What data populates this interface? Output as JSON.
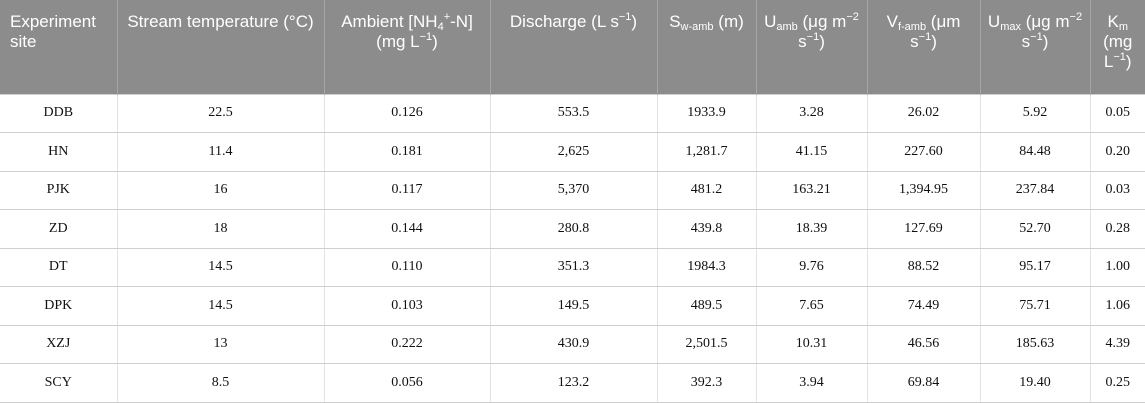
{
  "table": {
    "headers": [
      {
        "parts": [
          {
            "t": "n",
            "v": "Experiment site"
          }
        ]
      },
      {
        "parts": [
          {
            "t": "n",
            "v": "Stream temperature (°C)"
          }
        ]
      },
      {
        "parts": [
          {
            "t": "n",
            "v": "Ambient [NH"
          },
          {
            "t": "sub",
            "v": "4"
          },
          {
            "t": "sup",
            "v": "+"
          },
          {
            "t": "n",
            "v": "-N] (mg L"
          },
          {
            "t": "sup",
            "v": "−1"
          },
          {
            "t": "n",
            "v": ")"
          }
        ]
      },
      {
        "parts": [
          {
            "t": "n",
            "v": "Discharge (L s"
          },
          {
            "t": "sup",
            "v": "−1"
          },
          {
            "t": "n",
            "v": ")"
          }
        ]
      },
      {
        "parts": [
          {
            "t": "n",
            "v": "S"
          },
          {
            "t": "sub",
            "v": "w-amb"
          },
          {
            "t": "n",
            "v": " (m)"
          }
        ]
      },
      {
        "parts": [
          {
            "t": "n",
            "v": "U"
          },
          {
            "t": "sub",
            "v": "amb"
          },
          {
            "t": "n",
            "v": " (μg m"
          },
          {
            "t": "sup",
            "v": "−2"
          },
          {
            "t": "n",
            "v": " s"
          },
          {
            "t": "sup",
            "v": "−1"
          },
          {
            "t": "n",
            "v": ")"
          }
        ]
      },
      {
        "parts": [
          {
            "t": "n",
            "v": "V"
          },
          {
            "t": "sub",
            "v": "f-amb"
          },
          {
            "t": "n",
            "v": " (μm s"
          },
          {
            "t": "sup",
            "v": "−1"
          },
          {
            "t": "n",
            "v": ")"
          }
        ]
      },
      {
        "parts": [
          {
            "t": "n",
            "v": "U"
          },
          {
            "t": "sub",
            "v": "max"
          },
          {
            "t": "n",
            "v": " (μg m"
          },
          {
            "t": "sup",
            "v": "−2"
          },
          {
            "t": "n",
            "v": " s"
          },
          {
            "t": "sup",
            "v": "−1"
          },
          {
            "t": "n",
            "v": ")"
          }
        ]
      },
      {
        "parts": [
          {
            "t": "n",
            "v": "K"
          },
          {
            "t": "sub",
            "v": "m"
          },
          {
            "t": "n",
            "v": " (mg L"
          },
          {
            "t": "sup",
            "v": "−1"
          },
          {
            "t": "n",
            "v": ")"
          }
        ]
      }
    ],
    "rows": [
      [
        "DDB",
        "22.5",
        "0.126",
        "553.5",
        "1933.9",
        "3.28",
        "26.02",
        "5.92",
        "0.05"
      ],
      [
        "HN",
        "11.4",
        "0.181",
        "2,625",
        "1,281.7",
        "41.15",
        "227.60",
        "84.48",
        "0.20"
      ],
      [
        "PJK",
        "16",
        "0.117",
        "5,370",
        "481.2",
        "163.21",
        "1,394.95",
        "237.84",
        "0.03"
      ],
      [
        "ZD",
        "18",
        "0.144",
        "280.8",
        "439.8",
        "18.39",
        "127.69",
        "52.70",
        "0.28"
      ],
      [
        "DT",
        "14.5",
        "0.110",
        "351.3",
        "1984.3",
        "9.76",
        "88.52",
        "95.17",
        "1.00"
      ],
      [
        "DPK",
        "14.5",
        "0.103",
        "149.5",
        "489.5",
        "7.65",
        "74.49",
        "75.71",
        "1.06"
      ],
      [
        "XZJ",
        "13",
        "0.222",
        "430.9",
        "2,501.5",
        "10.31",
        "46.56",
        "185.63",
        "4.39"
      ],
      [
        "SCY",
        "8.5",
        "0.056",
        "123.2",
        "392.3",
        "3.94",
        "69.84",
        "19.40",
        "0.25"
      ]
    ]
  }
}
